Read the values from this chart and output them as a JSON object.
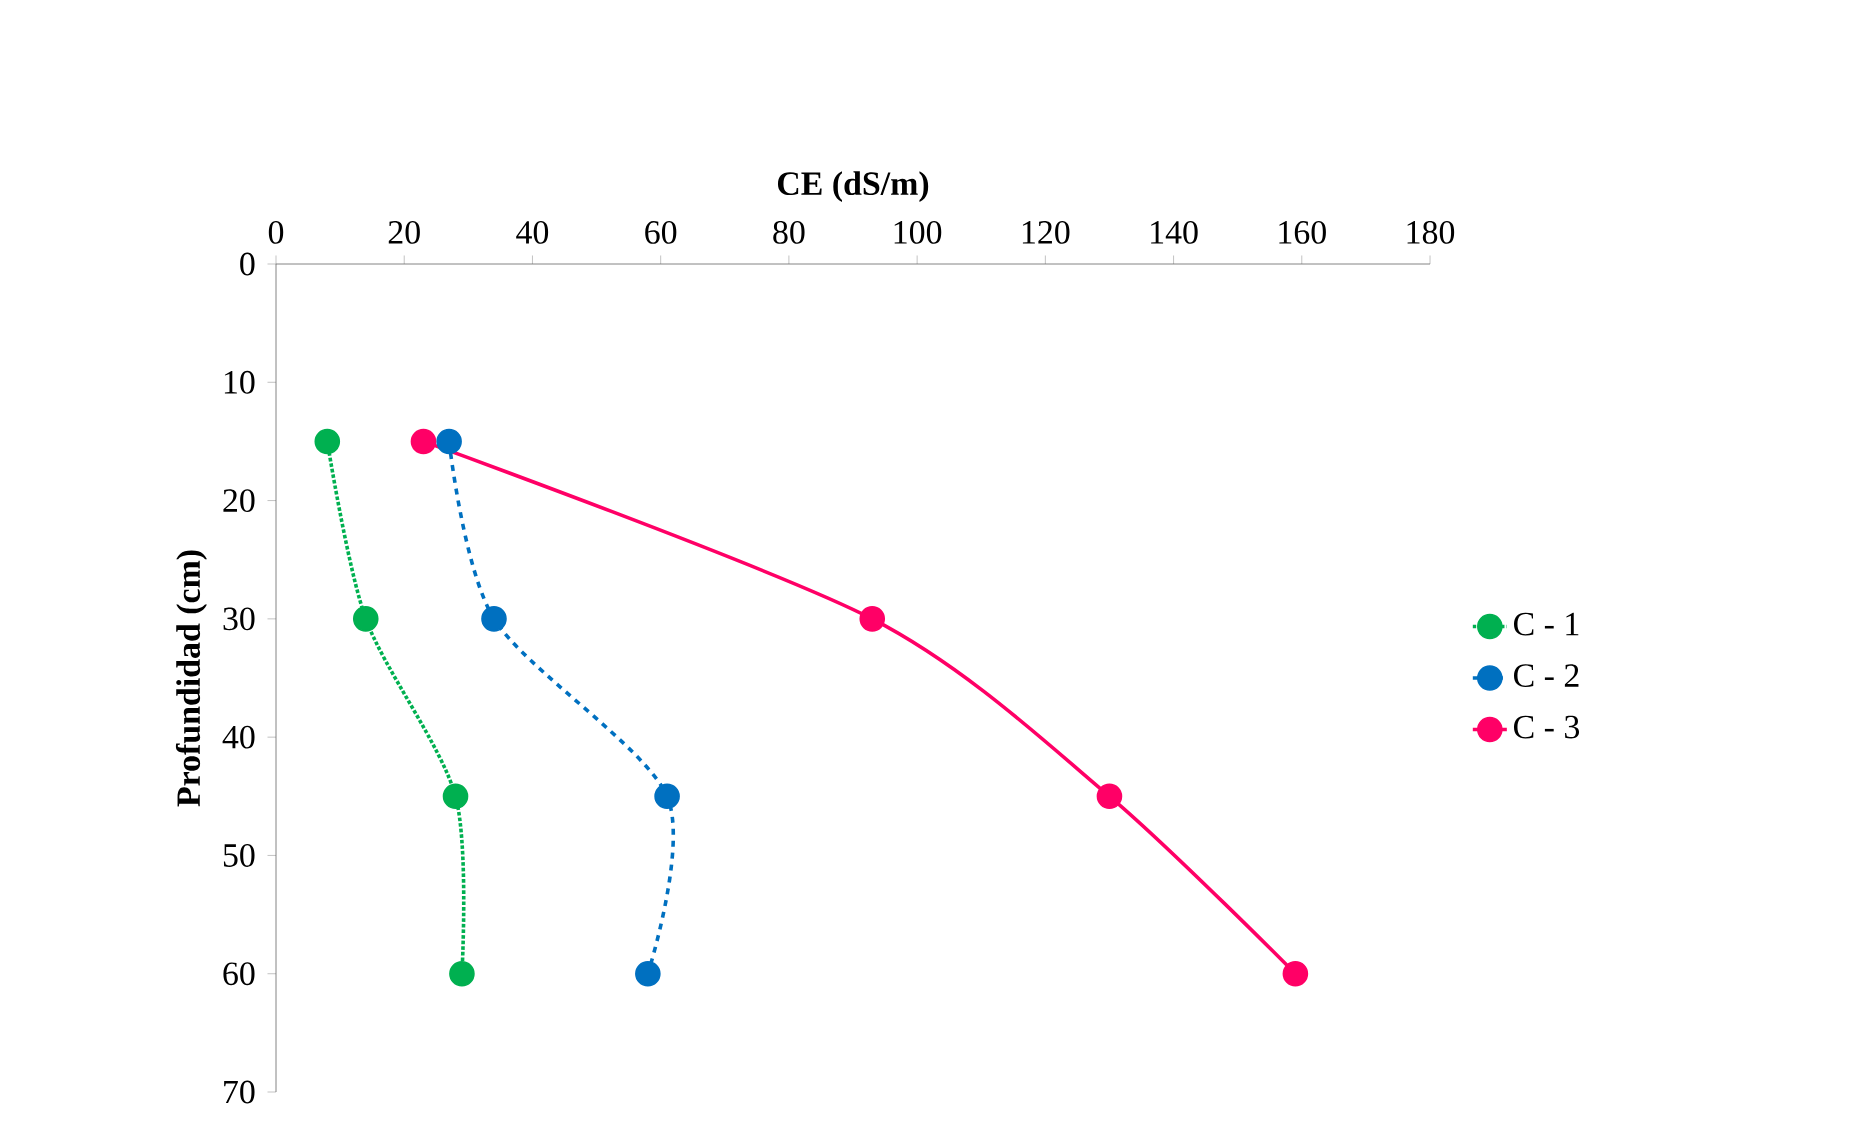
{
  "chart_data": {
    "type": "line",
    "xlabel": "CE (dS/m)",
    "ylabel": "Profundidad (cm)",
    "xlim": [
      0,
      180
    ],
    "ylim": [
      70,
      0
    ],
    "xticks": [
      0,
      20,
      40,
      60,
      80,
      100,
      120,
      140,
      160,
      180
    ],
    "yticks": [
      0,
      10,
      20,
      30,
      40,
      50,
      60,
      70
    ],
    "legend": "right",
    "grid": false,
    "series": [
      {
        "name": "C - 1",
        "color": "#00b050",
        "marker": "circle",
        "line_style": "dotted",
        "x": [
          8,
          14,
          28,
          29
        ],
        "values": [
          15,
          30,
          45,
          60
        ]
      },
      {
        "name": "C - 2",
        "color": "#0070c0",
        "marker": "circle",
        "line_style": "dashed",
        "x": [
          27,
          34,
          61,
          58
        ],
        "values": [
          15,
          30,
          45,
          60
        ]
      },
      {
        "name": "C - 3",
        "color": "#ff0066",
        "marker": "circle",
        "line_style": "solid",
        "x": [
          23,
          93,
          130,
          159
        ],
        "values": [
          15,
          30,
          45,
          60
        ]
      }
    ]
  }
}
